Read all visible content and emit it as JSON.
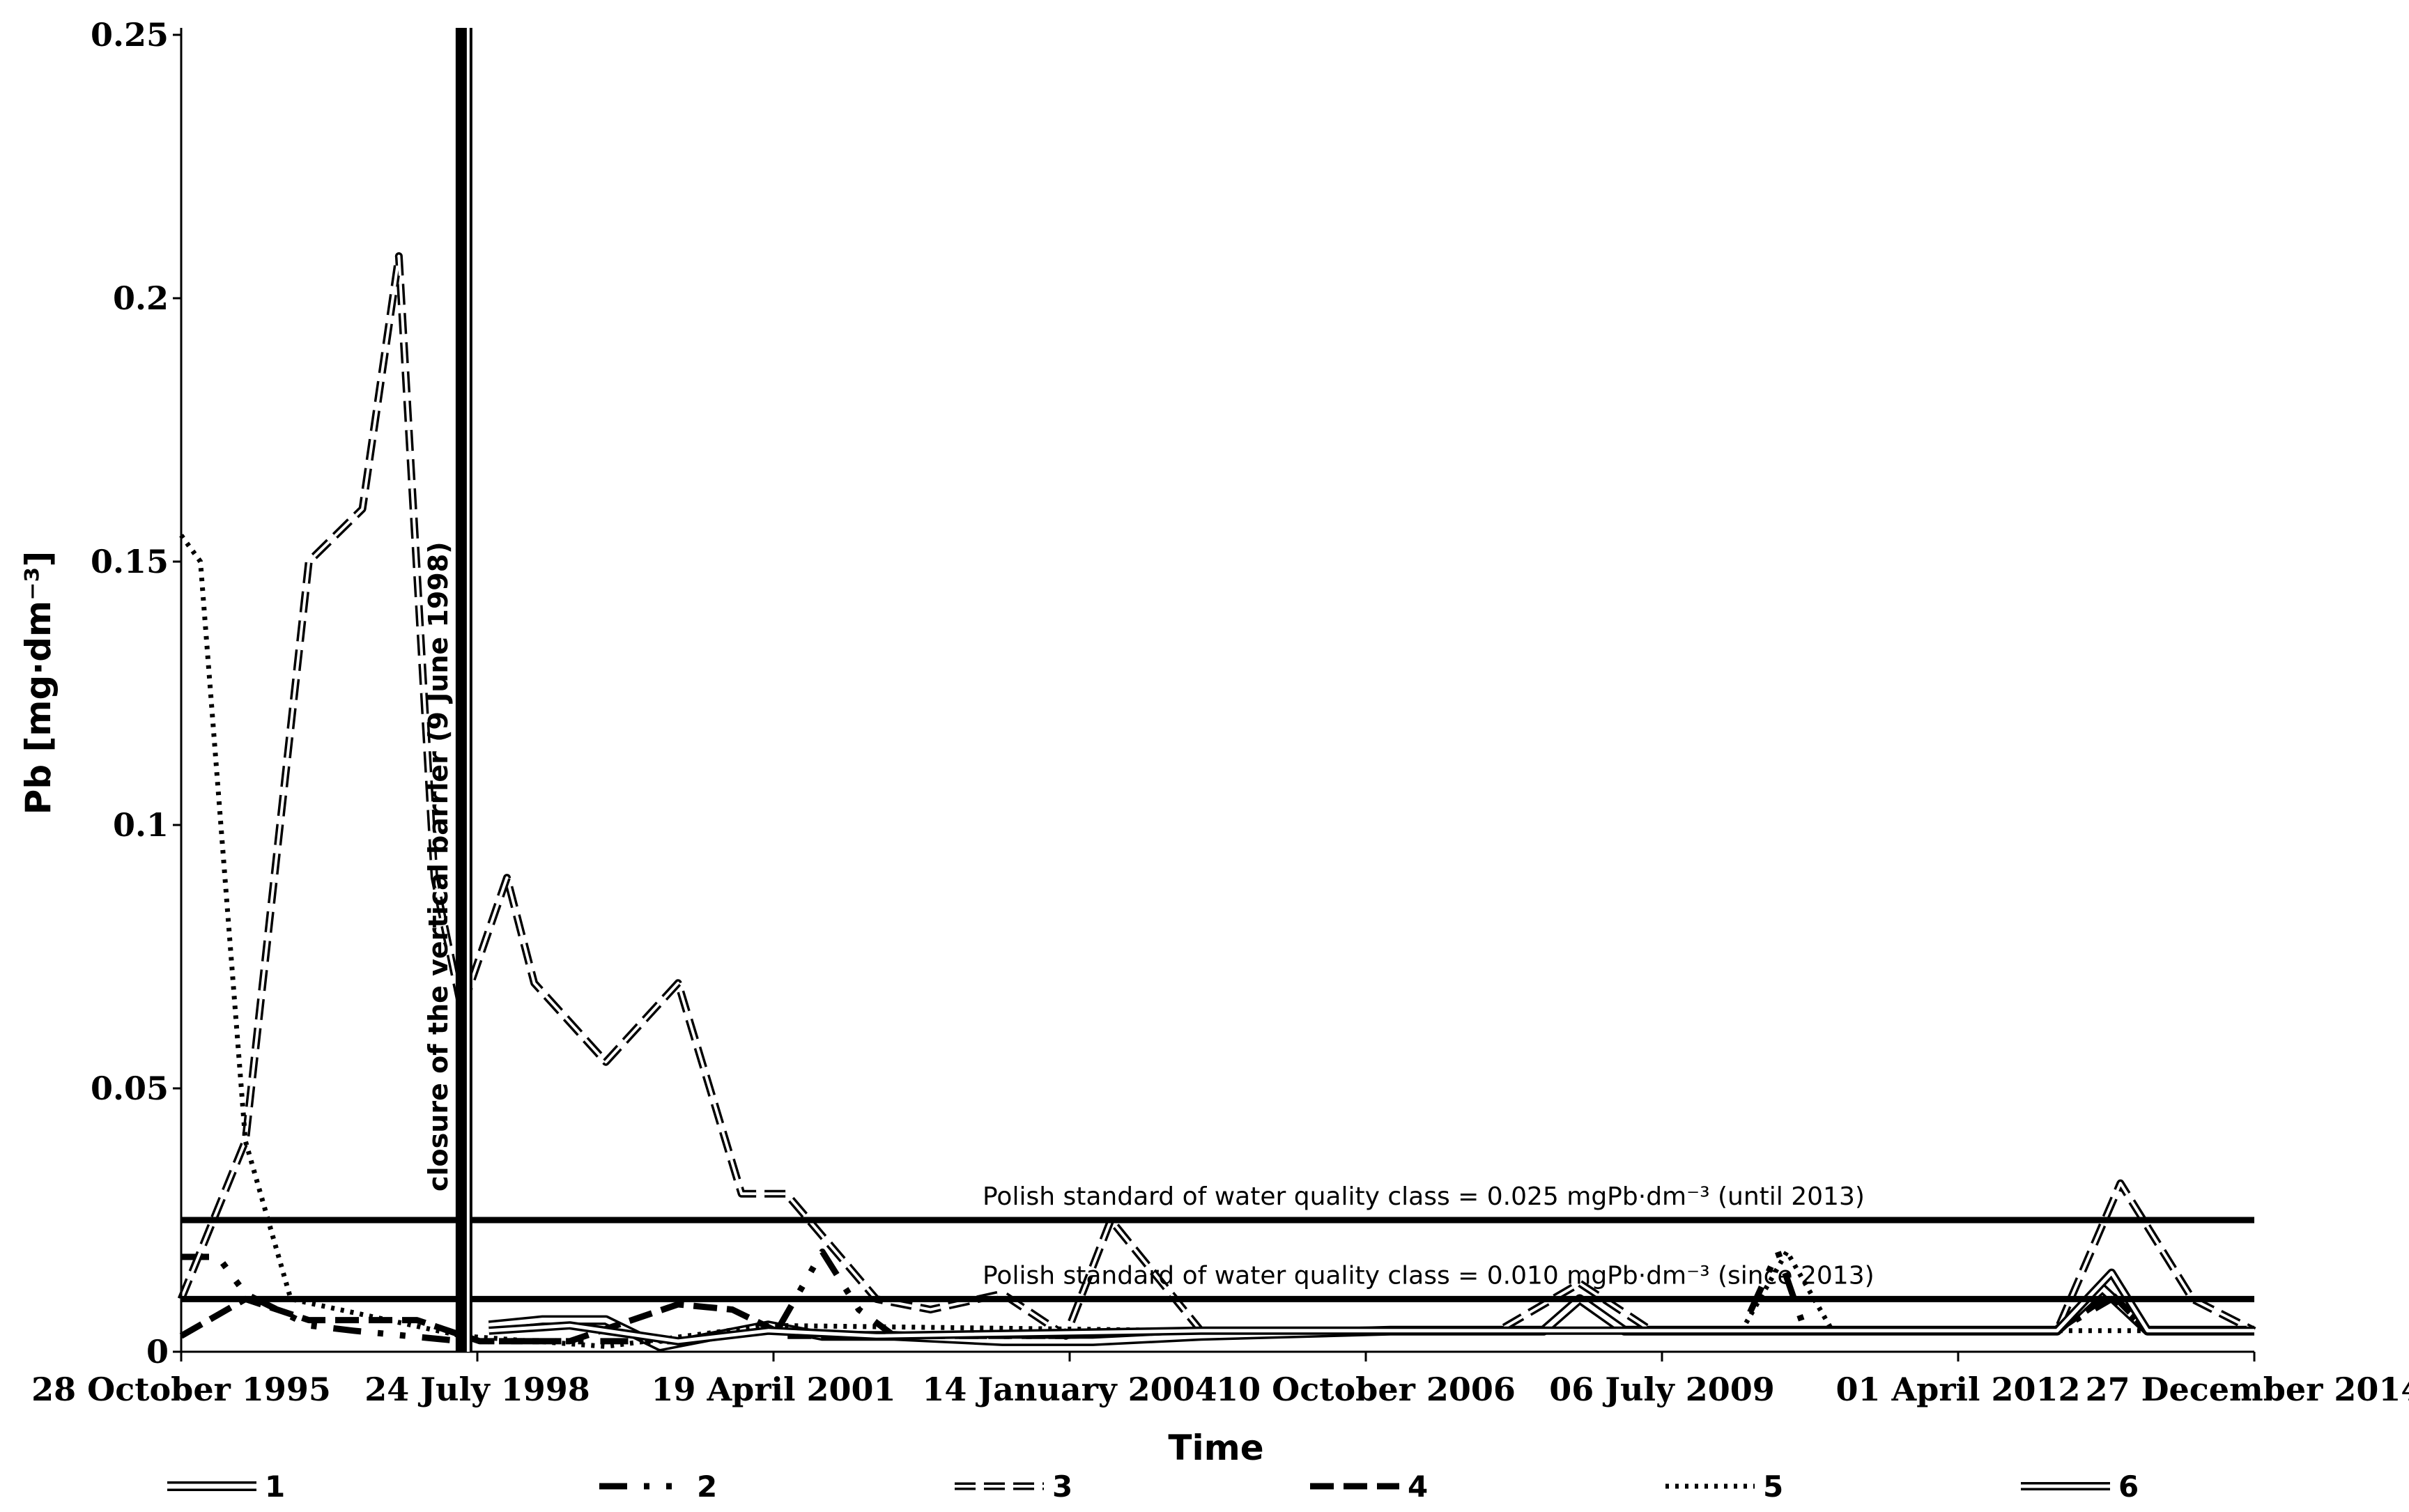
{
  "chart_data": {
    "type": "line",
    "title": "",
    "xlabel": "Time",
    "ylabel": "Pb [mg·dm⁻³]",
    "ylim": [
      0,
      0.25
    ],
    "xlim": [
      "1995-10-28",
      "2014-12-27"
    ],
    "x_tick_labels": [
      "28 October 1995",
      "24 July 1998",
      "19 April 2001",
      "14 January 2004",
      "10 October 2006",
      "06 July 2009",
      "01 April 2012",
      "27 December 2014"
    ],
    "x_tick_dates": [
      "1995-10-28",
      "1998-07-24",
      "2001-04-19",
      "2004-01-14",
      "2006-10-10",
      "2009-07-06",
      "2012-04-01",
      "2014-12-27"
    ],
    "y_ticks": [
      0,
      0.05,
      0.1,
      0.15,
      0.2,
      0.25
    ],
    "y_tick_labels": [
      "0",
      "0.05",
      "0.1",
      "0.15",
      "0.2",
      "0.25"
    ],
    "grid": false,
    "legend_position": "bottom",
    "series": [
      {
        "name": "1",
        "style": "double",
        "x": [
          "1998-09-01",
          "1999-03-01",
          "1999-10-01",
          "2000-04-01",
          "2000-10-01",
          "2001-04-01",
          "2001-10-01",
          "2002-06-01",
          "2003-06-01",
          "2004-04-01",
          "2005-04-01",
          "2007-01-01",
          "2008-06-01",
          "2008-10-01",
          "2009-03-01",
          "2011-01-01",
          "2013-03-01",
          "2013-08-01",
          "2014-01-01",
          "2014-12-27"
        ],
        "y": [
          0.005,
          0.006,
          0.006,
          0.001,
          0.003,
          0.005,
          0.003,
          0.003,
          0.002,
          0.002,
          0.003,
          0.004,
          0.004,
          0.01,
          0.004,
          0.004,
          0.004,
          0.012,
          0.004,
          0.004
        ]
      },
      {
        "name": "2",
        "style": "dashdot",
        "x": [
          "1995-10-28",
          "1996-03-01",
          "1996-06-01",
          "1997-01-01",
          "1997-06-01",
          "1998-06-01",
          "1999-06-01",
          "2000-06-01",
          "2001-05-01",
          "2001-10-01",
          "2002-02-01",
          "2002-06-01",
          "2004-01-01",
          "2005-01-01",
          "2010-04-01",
          "2010-08-01",
          "2010-11-01",
          "2013-03-01",
          "2013-09-01",
          "2014-01-01",
          "2014-12-27"
        ],
        "y": [
          0.018,
          0.018,
          0.011,
          0.005,
          0.004,
          0.002,
          0.002,
          0.002,
          0.004,
          0.019,
          0.008,
          0.003,
          0.003,
          0.004,
          0.004,
          0.019,
          0.004,
          0.004,
          0.01,
          0.004,
          0.004
        ]
      },
      {
        "name": "3",
        "style": "dashed-double",
        "x": [
          "1995-10-28",
          "1996-06-01",
          "1997-01-01",
          "1997-07-01",
          "1997-11-01",
          "1998-03-01",
          "1998-06-01",
          "1998-11-01",
          "1999-02-01",
          "1999-10-01",
          "2000-06-01",
          "2001-01-01",
          "2001-06-01",
          "2002-04-01",
          "2002-10-01",
          "2003-06-01",
          "2004-01-01",
          "2004-06-01",
          "2005-04-01",
          "2008-01-01",
          "2008-10-01",
          "2009-06-01",
          "2013-03-01",
          "2013-10-01",
          "2014-06-01",
          "2014-12-27"
        ],
        "y": [
          0.01,
          0.04,
          0.15,
          0.16,
          0.208,
          0.09,
          0.065,
          0.09,
          0.07,
          0.055,
          0.07,
          0.03,
          0.03,
          0.01,
          0.008,
          0.011,
          0.003,
          0.025,
          0.004,
          0.004,
          0.013,
          0.004,
          0.004,
          0.032,
          0.01,
          0.004
        ]
      },
      {
        "name": "4",
        "style": "dashed",
        "x": [
          "1995-10-28",
          "1996-06-01",
          "1997-01-01",
          "1998-01-01",
          "1998-08-01",
          "1999-06-01",
          "2000-06-01",
          "2000-12-01",
          "2001-06-01",
          "2004-01-01",
          "2005-04-01",
          "2013-03-01",
          "2013-09-01",
          "2014-01-01",
          "2014-12-27"
        ],
        "y": [
          0.003,
          0.01,
          0.006,
          0.006,
          0.002,
          0.002,
          0.009,
          0.008,
          0.003,
          0.003,
          0.004,
          0.004,
          0.011,
          0.004,
          0.004
        ]
      },
      {
        "name": "5",
        "style": "dotted",
        "x": [
          "1995-10-28",
          "1996-01-01",
          "1996-06-01",
          "1996-11-01",
          "1998-06-01",
          "1999-10-01",
          "2001-04-01",
          "2005-04-01",
          "2010-04-01",
          "2010-09-01",
          "2011-02-01",
          "2014-12-27"
        ],
        "y": [
          0.155,
          0.15,
          0.04,
          0.01,
          0.003,
          0.001,
          0.005,
          0.004,
          0.004,
          0.019,
          0.004,
          0.004
        ]
      },
      {
        "name": "6",
        "style": "double-dot",
        "x": [
          "1998-09-01",
          "1999-06-01",
          "2000-06-01",
          "2001-04-01",
          "2002-04-01",
          "2005-04-01",
          "2013-03-01",
          "2013-09-01",
          "2014-01-01",
          "2014-12-27"
        ],
        "y": [
          0.004,
          0.005,
          0.002,
          0.004,
          0.003,
          0.004,
          0.004,
          0.015,
          0.004,
          0.004
        ]
      }
    ],
    "reference_lines": [
      {
        "y": 0.025,
        "label": "Polish standard  of water quality class = 0.025 mgPb·dm⁻³ (until 2013)"
      },
      {
        "y": 0.01,
        "label": "Polish standard  of water quality class = 0.010 mgPb·dm⁻³ (since 2013)"
      }
    ],
    "event_line": {
      "date": "1998-06-09",
      "label": "closure of the vertical barrier (9 June 1998)"
    }
  }
}
